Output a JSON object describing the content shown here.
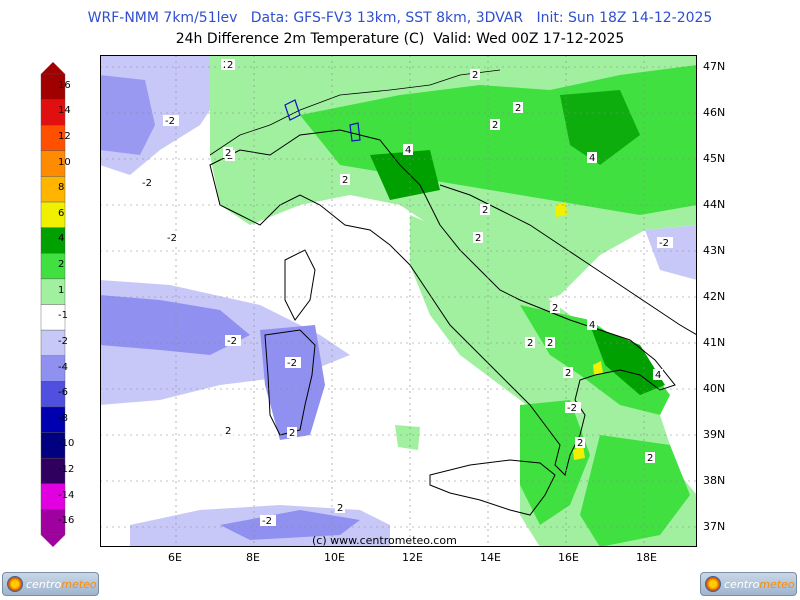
{
  "header": {
    "line1": "WRF-NMM 7km/51lev   Data: GFS-FV3 13km, SST 8km, 3DVAR   Init: Sun 18Z 14-12-2025",
    "line2": "24h Difference 2m Temperature (C)  Valid: Wed 00Z 17-12-2025"
  },
  "credit": "(c) www.centrometeo.com",
  "latitudes": [
    "47N",
    "46N",
    "45N",
    "44N",
    "43N",
    "42N",
    "41N",
    "40N",
    "39N",
    "38N",
    "37N"
  ],
  "longitudes": [
    "6E",
    "8E",
    "10E",
    "12E",
    "14E",
    "16E",
    "18E"
  ],
  "legend": {
    "labels": [
      "16",
      "14",
      "12",
      "10",
      "8",
      "6",
      "4",
      "2",
      "1",
      "-1",
      "-2",
      "-4",
      "-6",
      "-8",
      "-10",
      "-12",
      "-14",
      "-16"
    ],
    "colors": [
      "#a00000",
      "#e01010",
      "#ff5000",
      "#ff8c00",
      "#ffb400",
      "#f0f000",
      "#00a000",
      "#40e040",
      "#a0f0a0",
      "#ffffff",
      "#c8c8f8",
      "#9090f0",
      "#5050e0",
      "#0000b0",
      "#000080",
      "#300060",
      "#e000e0",
      "#a000a0"
    ]
  },
  "contour_labels": [
    "2",
    "-2",
    "2",
    "2",
    "4",
    "2",
    "2",
    "2",
    "4",
    "2",
    "-2",
    "-2",
    "2",
    "2",
    "2",
    "-2",
    "2",
    "4",
    "2",
    "2",
    "2",
    "4",
    "-2",
    "-2",
    "2",
    "2",
    "-2",
    "2",
    "-2",
    "2",
    "2"
  ],
  "logo": {
    "brand_a": "centro",
    "brand_b": "meteo"
  },
  "colors": {
    "plus2": "#40e040",
    "plus1": "#a0f0a0",
    "plus4": "#00a000",
    "minus1": "#c8c8f8",
    "minus2": "#9090f0",
    "header_blue": "#2f4fd0"
  }
}
